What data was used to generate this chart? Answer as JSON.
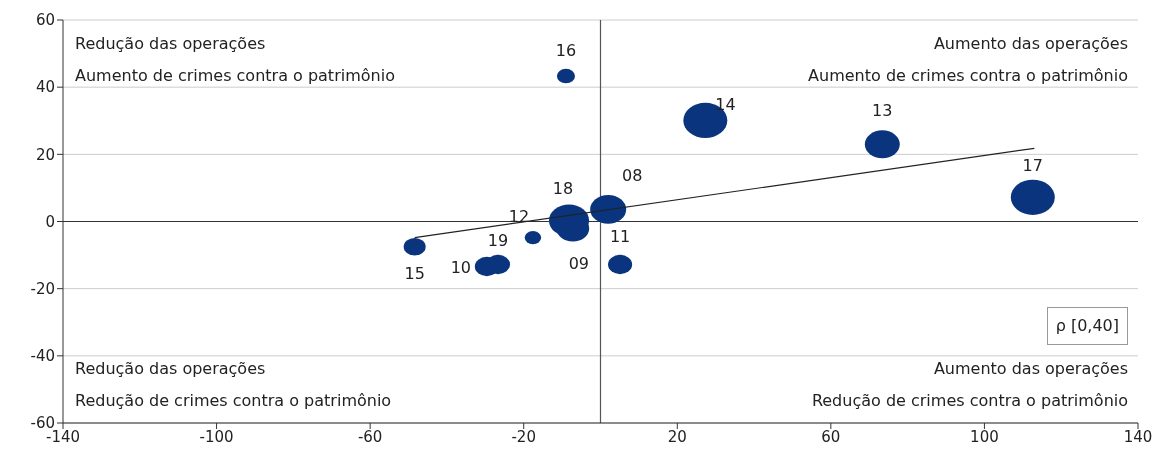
{
  "chart_data": {
    "type": "bubble",
    "xlim": [
      -140,
      140
    ],
    "xticks": [
      -140,
      -100,
      -60,
      -20,
      20,
      60,
      100,
      140
    ],
    "ylim": [
      -60,
      60
    ],
    "yticks": [
      -60,
      -40,
      -20,
      0,
      20,
      40,
      60
    ],
    "grid": "y",
    "series": [
      {
        "type": "bubble",
        "color": "#0a357e",
        "x": [
          -9.0,
          27.3,
          73.4,
          112.6,
          2.0,
          -8.2,
          -7.2,
          -17.6,
          -48.4,
          -26.7,
          -29.6,
          5.1
        ],
        "values": [
          43.3,
          30.1,
          23.0,
          7.2,
          3.6,
          0.3,
          -2.1,
          -4.8,
          -7.5,
          -12.8,
          -13.4,
          -12.8
        ],
        "sizes": [
          0.17,
          1,
          0.63,
          1,
          0.67,
          0.83,
          0.55,
          0.14,
          0.25,
          0.3,
          0.3,
          0.3
        ]
      },
      {
        "type": "line",
        "color": "#222222",
        "marker": "none",
        "x": [
          -48.4,
          113
        ],
        "values": [
          -4.8,
          21.8
        ]
      }
    ],
    "ref_lines": [
      {
        "axis": "x",
        "value": 0,
        "color": "#555555"
      },
      {
        "axis": "y",
        "value": 0,
        "color": "#333333"
      }
    ],
    "annotations": [
      "Redução das operações\nAumento de crimes contra o patrimônio",
      "Aumento das operações\nAumento de crimes contra o patrimônio",
      "Redução das operações\nRedução de crimes contra o patrimônio",
      "Aumento das operações\nRedução de crimes contra o patrimônio",
      "ρ [0,40]",
      {
        "text": "16",
        "x": -9.0,
        "y": 43.3
      },
      {
        "text": "14",
        "x": 27.3,
        "y": 30.1
      },
      {
        "text": "13",
        "x": 73.4,
        "y": 23.0
      },
      {
        "text": "17",
        "x": 112.6,
        "y": 7.2
      },
      {
        "text": "08",
        "x": 2.0,
        "y": 3.6
      },
      {
        "text": "18",
        "x": -8.2,
        "y": 0.3
      },
      {
        "text": "09",
        "x": -7.2,
        "y": -2.1
      },
      {
        "text": "12",
        "x": -17.6,
        "y": -4.8
      },
      {
        "text": "15",
        "x": -48.4,
        "y": -7.5
      },
      {
        "text": "19",
        "x": -26.7,
        "y": -12.8
      },
      {
        "text": "10",
        "x": -29.6,
        "y": -13.4
      },
      {
        "text": "11",
        "x": 5.1,
        "y": -12.8
      }
    ]
  }
}
